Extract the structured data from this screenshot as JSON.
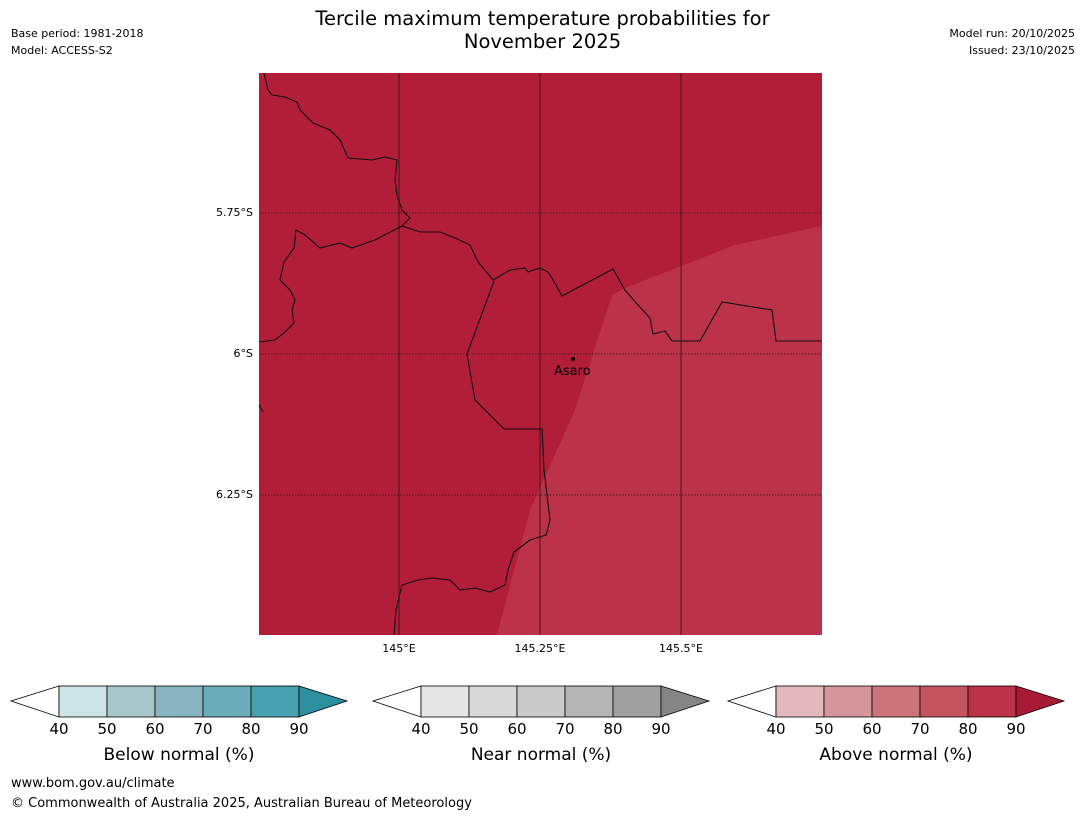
{
  "header": {
    "base_period": "Base period: 1981-2018",
    "model": "Model: ACCESS-S2",
    "title_line1": "Tercile maximum temperature probabilities for",
    "title_line2": "November 2025",
    "model_run": "Model run: 20/10/2025",
    "issued": "Issued: 23/10/2025"
  },
  "map": {
    "lat_labels": [
      "5.75°S",
      "6°S",
      "6.25°S"
    ],
    "lon_labels": [
      "145°E",
      "145.25°E",
      "145.5°E"
    ],
    "place": "Asaro",
    "colors": {
      "dominant": "#b21e38",
      "lighter": "#bb3249"
    }
  },
  "colorbars": [
    {
      "title": "Below normal (%)",
      "ticks": [
        "40",
        "50",
        "60",
        "70",
        "80",
        "90"
      ],
      "colors": [
        "#ffffff",
        "#cce3e8",
        "#a7c5cb",
        "#89b5c1",
        "#6aacba",
        "#47a0b0",
        "#2b8fa0"
      ]
    },
    {
      "title": "Near normal (%)",
      "ticks": [
        "40",
        "50",
        "60",
        "70",
        "80",
        "90"
      ],
      "colors": [
        "#ffffff",
        "#e6e6e6",
        "#d9d9d9",
        "#cacaca",
        "#b5b5b5",
        "#a0a0a0",
        "#858585"
      ]
    },
    {
      "title": "Above normal (%)",
      "ticks": [
        "40",
        "50",
        "60",
        "70",
        "80",
        "90"
      ],
      "colors": [
        "#ffffff",
        "#e2b8bd",
        "#d6959b",
        "#cc7479",
        "#c4555f",
        "#bb3249",
        "#a81a33"
      ]
    }
  ],
  "footer": {
    "url": "www.bom.gov.au/climate",
    "copyright": "© Commonwealth of Australia 2025, Australian Bureau of Meteorology"
  }
}
